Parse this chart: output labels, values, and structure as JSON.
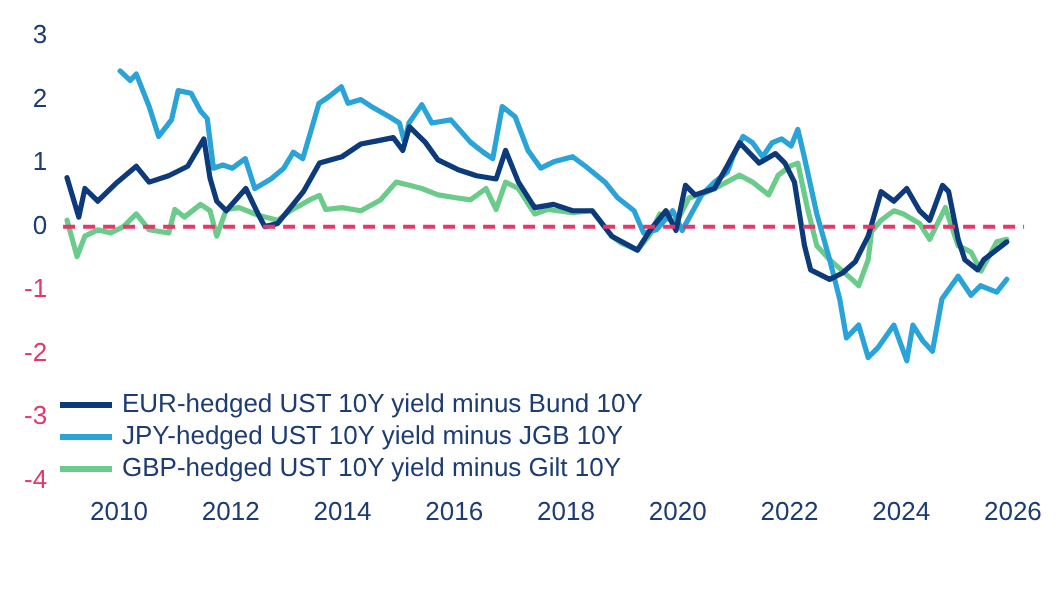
{
  "chart_data": {
    "type": "line",
    "xlim": [
      2009,
      2026.2
    ],
    "xticks": [
      2010,
      2012,
      2014,
      2016,
      2018,
      2020,
      2022,
      2024,
      2026
    ],
    "ylim": [
      -4,
      3
    ],
    "yticks": [
      -4,
      -3,
      -2,
      -1,
      0,
      1,
      2,
      3
    ],
    "grid": false,
    "legend": "bottom left",
    "marker": "none",
    "line_style": "solid",
    "ref_lines": [
      {
        "axis": "y",
        "value": 0,
        "color": "#e2386b",
        "line_style": "dashed"
      }
    ],
    "series": [
      {
        "name": "EUR-hedged UST 10Y yield minus Bund 10Y",
        "color": "#0c3a7a",
        "x": [
          2009.07,
          2009.28,
          2009.39,
          2009.62,
          2009.97,
          2010.31,
          2010.54,
          2010.89,
          2011.23,
          2011.52,
          2011.63,
          2011.75,
          2011.92,
          2012.27,
          2012.49,
          2012.61,
          2012.84,
          2013.07,
          2013.3,
          2013.59,
          2013.99,
          2014.33,
          2014.62,
          2014.91,
          2015.08,
          2015.2,
          2015.48,
          2015.71,
          2016.06,
          2016.4,
          2016.75,
          2016.92,
          2017.15,
          2017.44,
          2017.78,
          2018.12,
          2018.47,
          2018.82,
          2019.28,
          2019.51,
          2019.79,
          2019.97,
          2020.14,
          2020.31,
          2020.66,
          2020.89,
          2021.11,
          2021.46,
          2021.75,
          2021.92,
          2022.09,
          2022.27,
          2022.38,
          2022.72,
          2022.95,
          2023.18,
          2023.41,
          2023.64,
          2023.87,
          2024.1,
          2024.33,
          2024.51,
          2024.74,
          2024.85,
          2025.02,
          2025.14,
          2025.37,
          2025.48,
          2025.89
        ],
        "values": [
          0.77,
          0.15,
          0.6,
          0.4,
          0.7,
          0.95,
          0.7,
          0.8,
          0.95,
          1.38,
          0.76,
          0.4,
          0.25,
          0.6,
          0.2,
          0.0,
          0.05,
          0.3,
          0.55,
          1.0,
          1.1,
          1.3,
          1.35,
          1.4,
          1.2,
          1.57,
          1.33,
          1.05,
          0.9,
          0.8,
          0.75,
          1.2,
          0.7,
          0.3,
          0.35,
          0.25,
          0.25,
          -0.15,
          -0.37,
          -0.05,
          0.25,
          -0.06,
          0.65,
          0.5,
          0.6,
          0.96,
          1.32,
          1.0,
          1.15,
          1.0,
          0.7,
          -0.3,
          -0.68,
          -0.83,
          -0.73,
          -0.55,
          -0.15,
          0.55,
          0.4,
          0.6,
          0.25,
          0.1,
          0.65,
          0.55,
          -0.2,
          -0.52,
          -0.68,
          -0.52,
          -0.24
        ]
      },
      {
        "name": "JPY-hedged UST 10Y yield minus JGB 10Y",
        "color": "#2aa3d8",
        "x": [
          2010.02,
          2010.2,
          2010.31,
          2010.54,
          2010.71,
          2010.94,
          2011.06,
          2011.29,
          2011.46,
          2011.58,
          2011.69,
          2011.86,
          2012.03,
          2012.26,
          2012.43,
          2012.72,
          2012.95,
          2013.12,
          2013.29,
          2013.58,
          2013.75,
          2013.98,
          2014.1,
          2014.33,
          2014.5,
          2014.84,
          2015.02,
          2015.11,
          2015.19,
          2015.42,
          2015.6,
          2015.94,
          2016.29,
          2016.52,
          2016.69,
          2016.86,
          2017.09,
          2017.32,
          2017.55,
          2017.78,
          2018.12,
          2018.35,
          2018.7,
          2018.93,
          2019.22,
          2019.39,
          2019.62,
          2019.91,
          2020.08,
          2020.43,
          2020.66,
          2020.89,
          2021.0,
          2021.17,
          2021.34,
          2021.52,
          2021.69,
          2021.86,
          2022.03,
          2022.15,
          2022.26,
          2022.49,
          2022.72,
          2022.9,
          2023.02,
          2023.24,
          2023.41,
          2023.59,
          2023.87,
          2024.1,
          2024.21,
          2024.39,
          2024.56,
          2024.73,
          2025.02,
          2025.25,
          2025.42,
          2025.71,
          2025.89
        ],
        "values": [
          2.45,
          2.3,
          2.4,
          1.89,
          1.42,
          1.68,
          2.14,
          2.1,
          1.82,
          1.7,
          0.92,
          0.97,
          0.92,
          1.07,
          0.6,
          0.75,
          0.92,
          1.17,
          1.07,
          1.94,
          2.04,
          2.2,
          1.94,
          2.0,
          1.9,
          1.73,
          1.63,
          1.33,
          1.63,
          1.92,
          1.63,
          1.68,
          1.33,
          1.17,
          1.07,
          1.89,
          1.73,
          1.2,
          0.92,
          1.02,
          1.1,
          0.95,
          0.7,
          0.45,
          0.25,
          -0.1,
          -0.05,
          0.25,
          -0.06,
          0.5,
          0.7,
          0.86,
          1.12,
          1.42,
          1.32,
          1.1,
          1.32,
          1.38,
          1.27,
          1.53,
          1.12,
          0.2,
          -0.52,
          -1.14,
          -1.75,
          -1.55,
          -2.06,
          -1.9,
          -1.55,
          -2.11,
          -1.55,
          -1.8,
          -1.96,
          -1.14,
          -0.78,
          -1.08,
          -0.93,
          -1.03,
          -0.83
        ]
      },
      {
        "name": "GBP-hedged UST 10Y yield minus Gilt 10Y",
        "color": "#6acb8a",
        "x": [
          2009.07,
          2009.25,
          2009.39,
          2009.62,
          2009.85,
          2010.08,
          2010.31,
          2010.54,
          2010.89,
          2011.0,
          2011.17,
          2011.46,
          2011.63,
          2011.75,
          2011.92,
          2012.15,
          2012.49,
          2012.84,
          2013.07,
          2013.41,
          2013.59,
          2013.7,
          2013.99,
          2014.33,
          2014.68,
          2014.96,
          2015.2,
          2015.42,
          2015.71,
          2016.06,
          2016.29,
          2016.57,
          2016.75,
          2016.92,
          2017.15,
          2017.44,
          2017.67,
          2018.12,
          2018.47,
          2018.82,
          2018.99,
          2019.28,
          2019.51,
          2019.68,
          2019.97,
          2020.2,
          2020.54,
          2020.77,
          2021.11,
          2021.34,
          2021.63,
          2021.8,
          2022.03,
          2022.15,
          2022.32,
          2022.49,
          2022.72,
          2023.12,
          2023.24,
          2023.41,
          2023.47,
          2023.64,
          2023.87,
          2024.04,
          2024.33,
          2024.51,
          2024.79,
          2025.02,
          2025.25,
          2025.43,
          2025.71,
          2025.89
        ],
        "values": [
          0.1,
          -0.47,
          -0.15,
          -0.05,
          -0.1,
          0.0,
          0.2,
          -0.05,
          -0.1,
          0.27,
          0.15,
          0.35,
          0.25,
          -0.15,
          0.27,
          0.3,
          0.18,
          0.1,
          0.25,
          0.42,
          0.49,
          0.27,
          0.3,
          0.25,
          0.42,
          0.7,
          0.65,
          0.6,
          0.5,
          0.45,
          0.42,
          0.6,
          0.27,
          0.7,
          0.6,
          0.2,
          0.27,
          0.22,
          0.25,
          -0.15,
          -0.26,
          -0.37,
          -0.12,
          0.2,
          0.05,
          0.45,
          0.55,
          0.65,
          0.81,
          0.7,
          0.5,
          0.81,
          0.96,
          1.0,
          0.3,
          -0.3,
          -0.52,
          -0.83,
          -0.93,
          -0.52,
          -0.08,
          0.1,
          0.25,
          0.2,
          0.05,
          -0.2,
          0.3,
          -0.3,
          -0.4,
          -0.7,
          -0.24,
          -0.2
        ]
      }
    ]
  }
}
